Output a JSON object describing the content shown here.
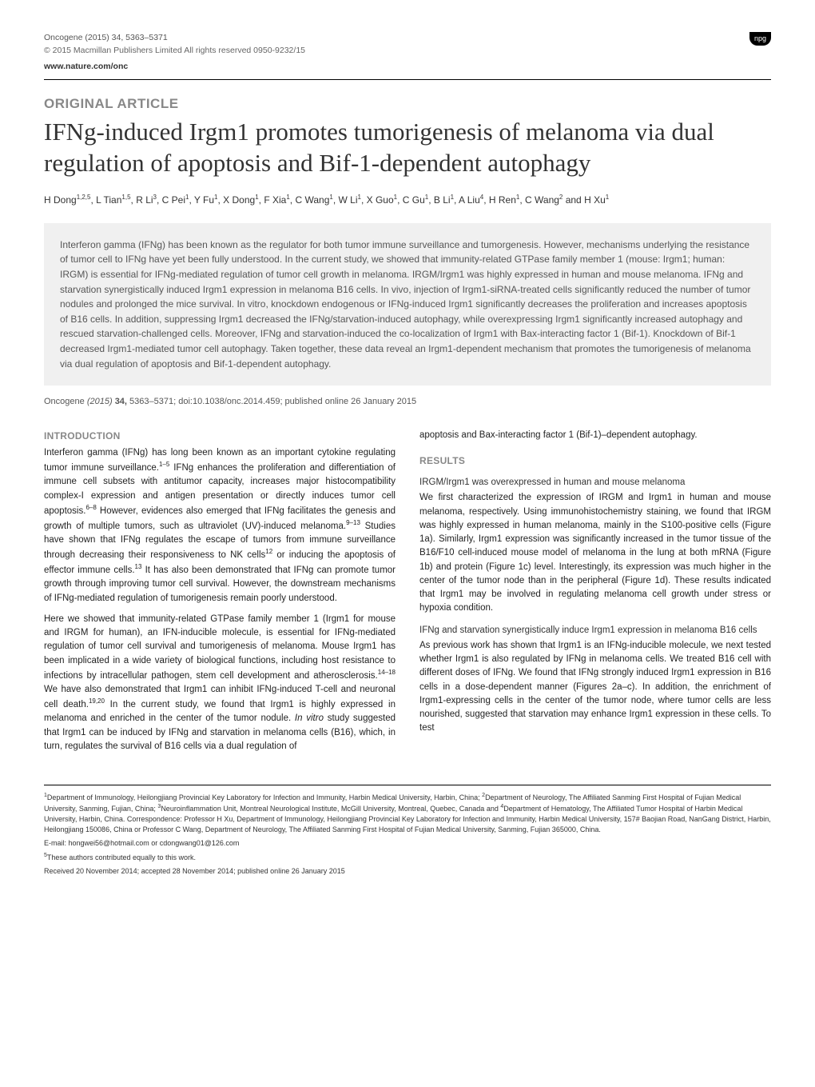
{
  "header": {
    "journal_line": "Oncogene (2015) 34, 5363–5371",
    "copyright_line": "© 2015 Macmillan Publishers Limited   All rights reserved 0950-9232/15",
    "website": "www.nature.com/onc",
    "badge": "npg"
  },
  "article": {
    "type": "ORIGINAL ARTICLE",
    "title": "IFNg-induced Irgm1 promotes tumorigenesis of melanoma via dual regulation of apoptosis and Bif-1-dependent autophagy",
    "authors_html": "H Dong<sup>1,2,5</sup>, L Tian<sup>1,5</sup>, R Li<sup>3</sup>, C Pei<sup>1</sup>, Y Fu<sup>1</sup>, X Dong<sup>1</sup>, F Xia<sup>1</sup>, C Wang<sup>1</sup>, W Li<sup>1</sup>, X Guo<sup>1</sup>, C Gu<sup>1</sup>, B Li<sup>1</sup>, A Liu<sup>4</sup>, H Ren<sup>1</sup>, C Wang<sup>2</sup> and H Xu<sup>1</sup>",
    "abstract": "Interferon gamma (IFNg) has been known as the regulator for both tumor immune surveillance and tumorgenesis. However, mechanisms underlying the resistance of tumor cell to IFNg have yet been fully understood. In the current study, we showed that immunity-related GTPase family member 1 (mouse: Irgm1; human: IRGM) is essential for IFNg-mediated regulation of tumor cell growth in melanoma. IRGM/Irgm1 was highly expressed in human and mouse melanoma. IFNg and starvation synergistically induced Irgm1 expression in melanoma B16 cells. In vivo, injection of Irgm1-siRNA-treated cells significantly reduced the number of tumor nodules and prolonged the mice survival. In vitro, knockdown endogenous or IFNg-induced Irgm1 significantly decreases the proliferation and increases apoptosis of B16 cells. In addition, suppressing Irgm1 decreased the IFNg/starvation-induced autophagy, while overexpressing Irgm1 significantly increased autophagy and rescued starvation-challenged cells. Moreover, IFNg and starvation-induced the co-localization of Irgm1 with Bax-interacting factor 1 (Bif-1). Knockdown of Bif-1 decreased Irgm1-mediated tumor cell autophagy. Taken together, these data reveal an Irgm1-dependent mechanism that promotes the tumorigenesis of melanoma via dual regulation of apoptosis and Bif-1-dependent autophagy.",
    "citation_html": "<span class='norm'>Oncogene</span> (2015) <span class='vol'>34,</span> <span class='norm'>5363–5371; doi:10.1038/onc.2014.459; published online 26 January 2015</span>"
  },
  "left_col": {
    "section": "INTRODUCTION",
    "p1_html": "Interferon gamma (IFNg) has long been known as an important cytokine regulating tumor immune surveillance.<sup>1–5</sup> IFNg enhances the proliferation and differentiation of immune cell subsets with antitumor capacity, increases major histocompatibility complex-I expression and antigen presentation or directly induces tumor cell apoptosis.<sup>6–8</sup> However, evidences also emerged that IFNg facilitates the genesis and growth of multiple tumors, such as ultraviolet (UV)-induced melanoma.<sup>9–13</sup> Studies have shown that IFNg regulates the escape of tumors from immune surveillance through decreasing their responsiveness to NK cells<sup>12</sup> or inducing the apoptosis of effector immune cells.<sup>13</sup> It has also been demonstrated that IFNg can promote tumor growth through improving tumor cell survival. However, the downstream mechanisms of IFNg-mediated regulation of tumorigenesis remain poorly understood.",
    "p2_html": "Here we showed that immunity-related GTPase family member 1 (Irgm1 for mouse and IRGM for human), an IFN-inducible molecule, is essential for IFNg-mediated regulation of tumor cell survival and tumorigenesis of melanoma. Mouse Irgm1 has been implicated in a wide variety of biological functions, including host resistance to infections by intracellular pathogen, stem cell development and atherosclerosis.<sup>14–18</sup> We have also demonstrated that Irgm1 can inhibit IFNg-induced T-cell and neuronal cell death.<sup>19,20</sup> In the current study, we found that Irgm1 is highly expressed in melanoma and enriched in the center of the tumor nodule. <i>In vitro</i> study suggested that Irgm1 can be induced by IFNg and starvation in melanoma cells (B16), which, in turn, regulates the survival of B16 cells via a dual regulation of"
  },
  "right_col": {
    "p0": "apoptosis and Bax-interacting factor 1 (Bif-1)–dependent autophagy.",
    "section": "RESULTS",
    "sub1": "IRGM/Irgm1 was overexpressed in human and mouse melanoma",
    "p1": "We first characterized the expression of IRGM and Irgm1 in human and mouse melanoma, respectively. Using immunohistochemistry staining, we found that IRGM was highly expressed in human melanoma, mainly in the S100-positive cells (Figure 1a). Similarly, Irgm1 expression was significantly increased in the tumor tissue of the B16/F10 cell-induced mouse model of melanoma in the lung at both mRNA (Figure 1b) and protein (Figure 1c) level. Interestingly, its expression was much higher in the center of the tumor node than in the peripheral (Figure 1d). These results indicated that Irgm1 may be involved in regulating melanoma cell growth under stress or hypoxia condition.",
    "sub2": "IFNg and starvation synergistically induce Irgm1 expression in melanoma B16 cells",
    "p2": "As previous work has shown that Irgm1 is an IFNg-inducible molecule, we next tested whether Irgm1 is also regulated by IFNg in melanoma cells. We treated B16 cell with different doses of IFNg. We found that IFNg strongly induced Irgm1 expression in B16 cells in a dose-dependent manner (Figures 2a–c). In addition, the enrichment of Irgm1-expressing cells in the center of the tumor node, where tumor cells are less nourished, suggested that starvation may enhance Irgm1 expression in these cells. To test"
  },
  "footer": {
    "affiliations_html": "<sup>1</sup>Department of Immunology, Heilongjiang Provincial Key Laboratory for Infection and Immunity, Harbin Medical University, Harbin, China; <sup>2</sup>Department of Neurology, The Affiliated Sanming First Hospital of Fujian Medical University, Sanming, Fujian, China; <sup>3</sup>Neuroinflammation Unit, Montreal Neurological Institute, McGill University, Montreal, Quebec, Canada and <sup>4</sup>Department of Hematology, The Affiliated Tumor Hospital of Harbin Medical University, Harbin, China. Correspondence: Professor H Xu, Department of Immunology, Heilongjiang Provincial Key Laboratory for Infection and Immunity, Harbin Medical University, 157# Baojian Road, NanGang District, Harbin, Heilongjiang 150086, China or Professor C Wang, Department of Neurology, The Affiliated Sanming First Hospital of Fujian Medical University, Sanming, Fujian 365000, China.",
    "email": "E-mail: hongwei56@hotmail.com or cdongwang01@126.com",
    "equal_html": "<sup>5</sup>These authors contributed equally to this work.",
    "received": "Received 20 November 2014; accepted 28 November 2014; published online 26 January 2015"
  }
}
